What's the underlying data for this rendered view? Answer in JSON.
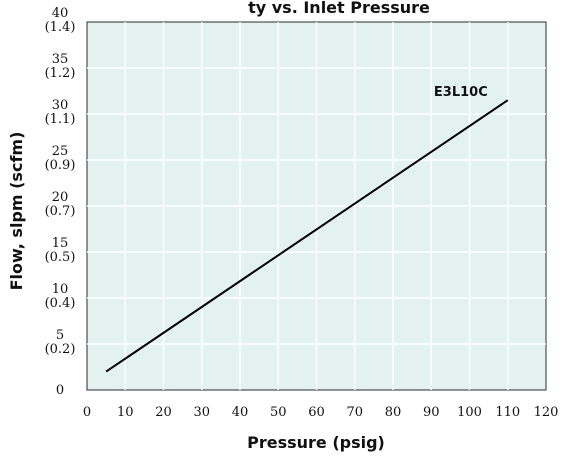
{
  "chart_data": {
    "type": "line",
    "title": "ty vs. Inlet Pressure",
    "xlabel": "Pressure (psig)",
    "ylabel": "Flow, slpm (scfm)",
    "xlim": [
      0,
      120
    ],
    "ylim": [
      0,
      40
    ],
    "grid": true,
    "x_ticks": [
      "0",
      "10",
      "20",
      "30",
      "40",
      "50",
      "60",
      "70",
      "80",
      "90",
      "100",
      "110",
      "120"
    ],
    "y_ticks": [
      {
        "value": 0,
        "primary": "0",
        "secondary": ""
      },
      {
        "value": 5,
        "primary": "5",
        "secondary": "(0.2)"
      },
      {
        "value": 10,
        "primary": "10",
        "secondary": "(0.4)"
      },
      {
        "value": 15,
        "primary": "15",
        "secondary": "(0.5)"
      },
      {
        "value": 20,
        "primary": "20",
        "secondary": "(0.7)"
      },
      {
        "value": 25,
        "primary": "25",
        "secondary": "(0.9)"
      },
      {
        "value": 30,
        "primary": "30",
        "secondary": "(1.1)"
      },
      {
        "value": 35,
        "primary": "35",
        "secondary": "(1.2)"
      },
      {
        "value": 40,
        "primary": "40",
        "secondary": "(1.4)"
      }
    ],
    "series": [
      {
        "name": "E3L10C",
        "color": "#000000",
        "x": [
          5,
          110
        ],
        "y": [
          2,
          31.5
        ]
      }
    ],
    "colors": {
      "plot_background": "#e4f2ef",
      "grid": "#ffffff"
    }
  }
}
